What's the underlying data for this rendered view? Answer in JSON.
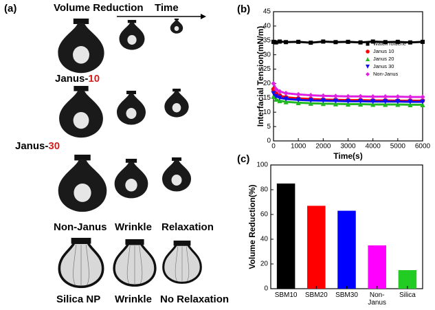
{
  "panel_a": {
    "label": "(a)",
    "header": {
      "left": "Volume Reduction",
      "right": "Time"
    },
    "rows": [
      {
        "name": {
          "prefix": "Janus-",
          "number": "10"
        }
      },
      {
        "name": {
          "prefix": "Janus-",
          "number": "30"
        }
      },
      {
        "labels": [
          "Non-Janus",
          "Wrinkle",
          "Relaxation"
        ]
      },
      {
        "labels": [
          "Silica NP",
          "Wrinkle",
          "No Relaxation"
        ]
      }
    ]
  },
  "chart_data": [
    {
      "type": "line",
      "label": "(b)",
      "x_label": "Time(s)",
      "y_label": "Interfacial Tension(mN/m)",
      "x": [
        0,
        100,
        250,
        500,
        1000,
        1500,
        2000,
        2500,
        3000,
        3500,
        4000,
        4500,
        5000,
        5500,
        6000
      ],
      "xlim": [
        0,
        6000
      ],
      "xticks": [
        0,
        1000,
        2000,
        3000,
        4000,
        5000,
        6000
      ],
      "ylim": [
        0,
        45
      ],
      "yticks": [
        0,
        5,
        10,
        15,
        20,
        25,
        30,
        35,
        40,
        45
      ],
      "legend": "upper-right",
      "series": [
        {
          "name": "Water/Toluene",
          "color": "#000000",
          "marker": "square",
          "values": [
            34.5,
            34.3,
            34.6,
            34.4,
            34.5,
            34.2,
            34.6,
            34.4,
            34.5,
            34.3,
            34.6,
            34.4,
            34.5,
            34.3,
            34.5
          ]
        },
        {
          "name": "Janus 10",
          "color": "#ff0000",
          "marker": "circle",
          "values": [
            18,
            16.5,
            15.8,
            15.2,
            14.8,
            14.6,
            14.4,
            14.3,
            14.2,
            14.2,
            14.1,
            14.1,
            14.0,
            14.0,
            14.0
          ]
        },
        {
          "name": "Janus 20",
          "color": "#22b822",
          "marker": "triangle",
          "values": [
            15.5,
            14.5,
            14,
            13.6,
            13.3,
            13.1,
            13,
            12.9,
            12.8,
            12.8,
            12.7,
            12.7,
            12.7,
            12.6,
            12.6
          ]
        },
        {
          "name": "Janus 30",
          "color": "#1010ee",
          "marker": "triangle-down",
          "values": [
            16.5,
            15.5,
            15,
            14.6,
            14.3,
            14.1,
            14,
            13.9,
            13.8,
            13.8,
            13.7,
            13.7,
            13.7,
            13.6,
            13.6
          ]
        },
        {
          "name": "Non-Janus",
          "color": "#e020e0",
          "marker": "diamond",
          "values": [
            20,
            18,
            17.2,
            16.6,
            16.2,
            15.9,
            15.7,
            15.6,
            15.5,
            15.5,
            15.4,
            15.4,
            15.4,
            15.3,
            15.3
          ]
        }
      ]
    },
    {
      "type": "bar",
      "label": "(c)",
      "y_label": "Volume Reduction(%)",
      "categories": [
        "SBM10",
        "SBM20",
        "SBM30",
        "Non-Janus",
        "Silica"
      ],
      "values": [
        85,
        67,
        63,
        35,
        15
      ],
      "colors": [
        "#000000",
        "#ff0000",
        "#0000ff",
        "#ff00ff",
        "#22cc22"
      ],
      "ylim": [
        0,
        100
      ],
      "yticks": [
        0,
        20,
        40,
        60,
        80,
        100
      ]
    }
  ]
}
